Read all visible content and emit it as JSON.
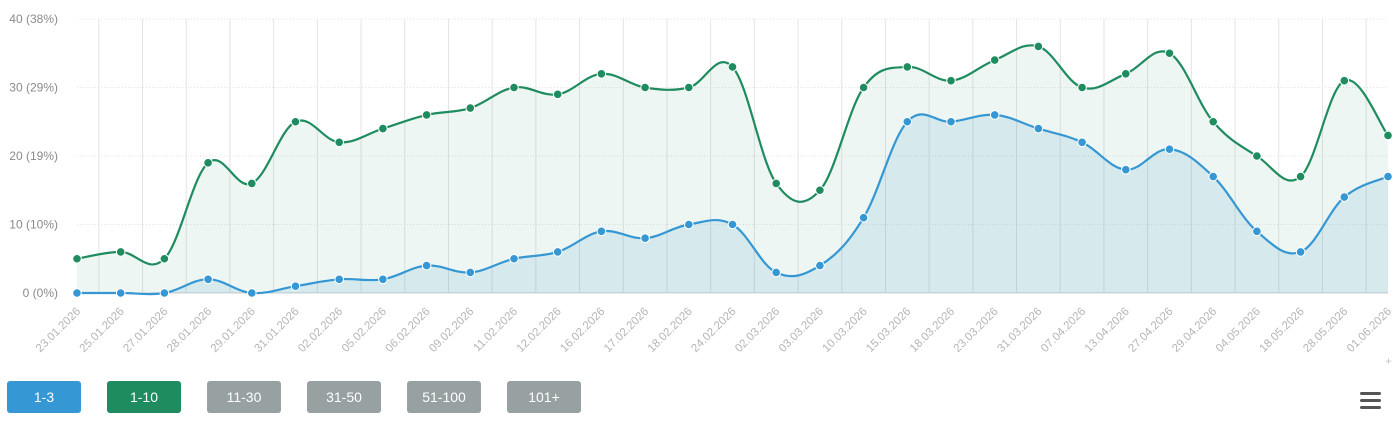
{
  "chart_data": {
    "type": "area",
    "x": [
      "23.01.2026",
      "25.01.2026",
      "27.01.2026",
      "28.01.2026",
      "29.01.2026",
      "31.01.2026",
      "02.02.2026",
      "05.02.2026",
      "06.02.2026",
      "09.02.2026",
      "11.02.2026",
      "12.02.2026",
      "16.02.2026",
      "17.02.2026",
      "18.02.2026",
      "24.02.2026",
      "02.03.2026",
      "03.03.2026",
      "10.03.2026",
      "15.03.2026",
      "18.03.2026",
      "23.03.2026",
      "31.03.2026",
      "07.04.2026",
      "13.04.2026",
      "27.04.2026",
      "29.04.2026",
      "04.05.2026",
      "18.05.2026",
      "28.05.2026",
      "01.06.2026"
    ],
    "series": [
      {
        "name": "1-10",
        "color": "#1e8c5e",
        "values": [
          5,
          6,
          5,
          19,
          16,
          25,
          22,
          24,
          26,
          27,
          30,
          29,
          32,
          30,
          30,
          33,
          16,
          15,
          30,
          33,
          31,
          34,
          36,
          30,
          32,
          35,
          25,
          20,
          17,
          31,
          23
        ]
      },
      {
        "name": "1-3",
        "color": "#3597d3",
        "values": [
          0,
          0,
          0,
          2,
          0,
          1,
          2,
          2,
          4,
          3,
          5,
          6,
          9,
          8,
          10,
          10,
          3,
          4,
          11,
          25,
          25,
          26,
          24,
          22,
          18,
          21,
          17,
          9,
          6,
          14,
          17
        ]
      }
    ],
    "y_ticks": [
      "0 (0%)",
      "10 (10%)",
      "20 (19%)",
      "30 (29%)",
      "40 (38%)"
    ],
    "ylim": [
      0,
      40
    ],
    "grid": true
  },
  "filters": [
    {
      "label": "1-3",
      "color": "#3597d3"
    },
    {
      "label": "1-10",
      "color": "#1e8c5e"
    },
    {
      "label": "11-30",
      "color": "#97a1a2"
    },
    {
      "label": "31-50",
      "color": "#97a1a2"
    },
    {
      "label": "51-100",
      "color": "#97a1a2"
    },
    {
      "label": "101+",
      "color": "#97a1a2"
    }
  ],
  "menu": {
    "icon": "hamburger-menu-icon"
  }
}
